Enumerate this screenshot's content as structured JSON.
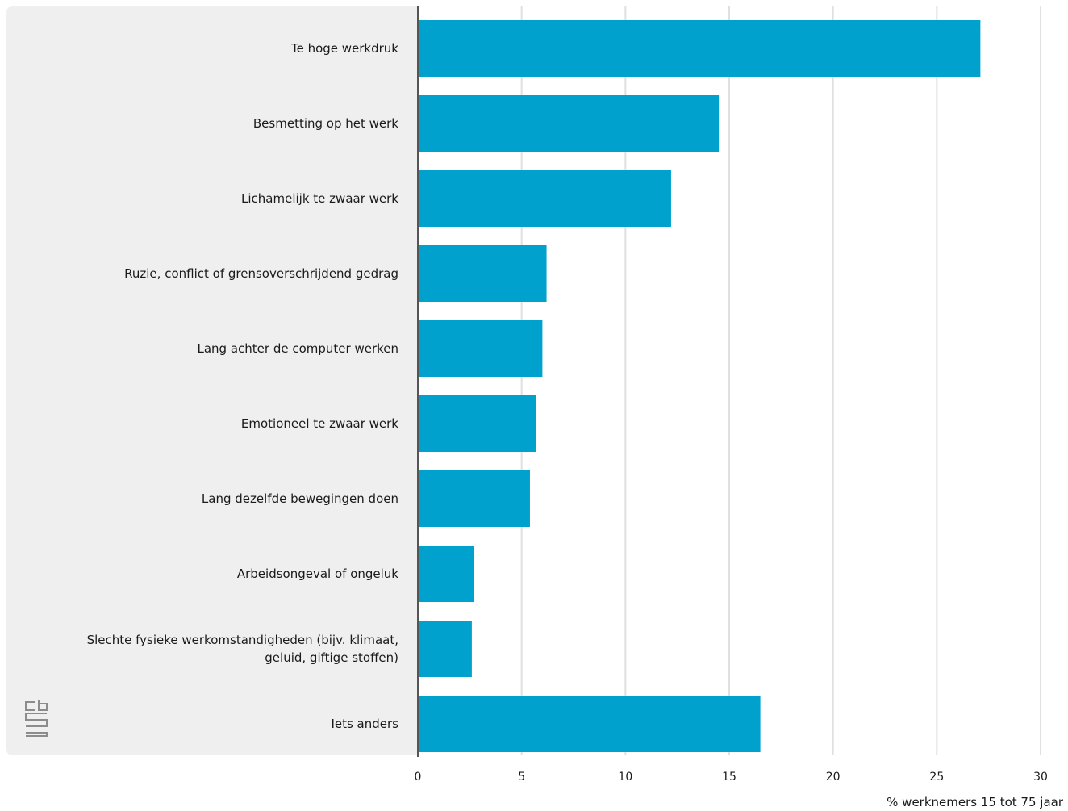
{
  "colors": {
    "bar": "#00a1cd",
    "panel": "#efefef",
    "grid": "#e0e0e0",
    "axis": "#555555",
    "logo": "#8c8c8c"
  },
  "logo": {
    "icon": "cbs-logo-icon",
    "text": "cbs"
  },
  "chart_data": {
    "type": "bar",
    "orientation": "horizontal",
    "categories": [
      [
        "Te hoge werkdruk"
      ],
      [
        "Besmetting op het werk"
      ],
      [
        "Lichamelijk te zwaar werk"
      ],
      [
        "Ruzie, conflict of grensoverschrijdend gedrag"
      ],
      [
        "Lang achter de computer werken"
      ],
      [
        "Emotioneel te zwaar werk"
      ],
      [
        "Lang dezelfde bewegingen doen"
      ],
      [
        "Arbeidsongeval of ongeluk"
      ],
      [
        "Slechte fysieke werkomstandigheden (bijv. klimaat,",
        "geluid, giftige stoffen)"
      ],
      [
        "Iets anders"
      ]
    ],
    "values": [
      27.1,
      14.5,
      12.2,
      6.2,
      6.0,
      5.7,
      5.4,
      2.7,
      2.6,
      16.5
    ],
    "xticks": [
      "0",
      "5",
      "10",
      "15",
      "20",
      "25",
      "30"
    ],
    "xlim": [
      0,
      30
    ],
    "xlabel": "% werknemers 15 tot 75 jaar",
    "grid": true
  }
}
